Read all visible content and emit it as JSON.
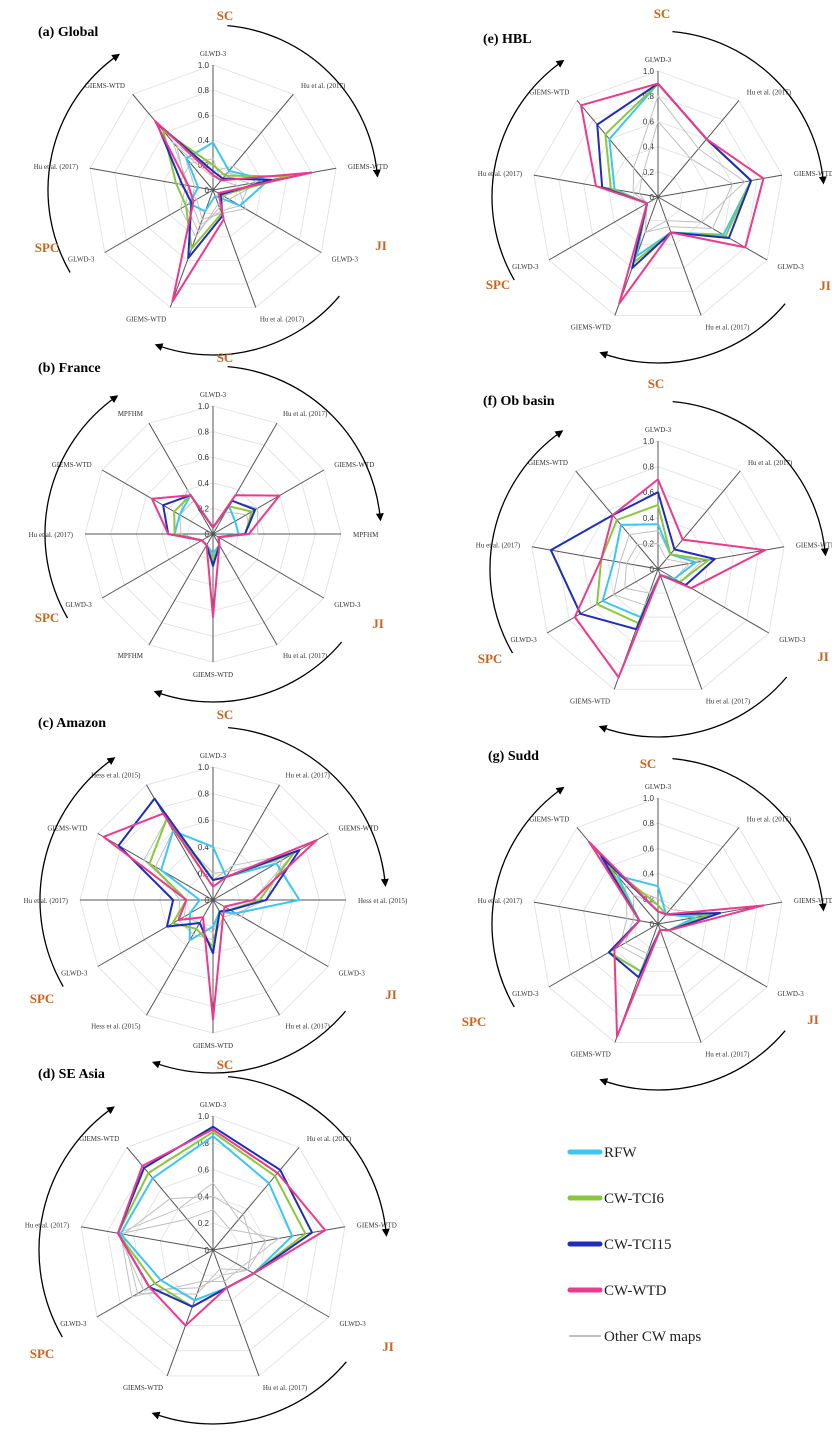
{
  "colors": {
    "RFW": "#3ec6f0",
    "CW-TCI6": "#8cc63f",
    "CW-TCI15": "#1f2fb5",
    "CW-WTD": "#ec3a8c",
    "Other CW maps": "#c0c0c0",
    "group_label": "#c8641e",
    "axis": "#555555",
    "grid": "#e2e2e2"
  },
  "legend": [
    "RFW",
    "CW-TCI6",
    "CW-TCI15",
    "CW-WTD",
    "Other CW maps"
  ],
  "chart_data": [
    {
      "type": "radar",
      "title": "(a) Global",
      "rticks": [
        "0",
        "0.2",
        "0.4",
        "0.6",
        "0.8",
        "1.0"
      ],
      "groups": [
        "SC",
        "JI",
        "SPC"
      ],
      "axes": [
        "GLWD-3",
        "Hu et al. (2017)",
        "GIEMS-WTD",
        "GLWD-3",
        "Hu et al. (2017)",
        "GIEMS-WTD",
        "GLWD-3",
        "Hu et al. (2017)",
        "GIEMS-WTD"
      ],
      "series": [
        {
          "name": "RFW",
          "values": [
            0.38,
            0.2,
            0.45,
            0.25,
            0.05,
            0.18,
            0.22,
            0.12,
            0.33
          ]
        },
        {
          "name": "CW-TCI6",
          "values": [
            0.2,
            0.15,
            0.62,
            0.08,
            0.2,
            0.5,
            0.25,
            0.3,
            0.62
          ]
        },
        {
          "name": "CW-TCI15",
          "values": [
            0.15,
            0.12,
            0.47,
            0.07,
            0.22,
            0.58,
            0.2,
            0.25,
            0.7
          ]
        },
        {
          "name": "CW-WTD",
          "values": [
            0.12,
            0.1,
            0.8,
            0.05,
            0.25,
            0.95,
            0.18,
            0.2,
            0.72
          ]
        },
        {
          "name": "Other CW maps",
          "values": [
            [
              0.2,
              0.15,
              0.3,
              0.25,
              0.18,
              0.3,
              0.2,
              0.15,
              0.35
            ],
            [
              0.1,
              0.18,
              0.4,
              0.15,
              0.12,
              0.4,
              0.3,
              0.22,
              0.45
            ],
            [
              0.25,
              0.1,
              0.2,
              0.3,
              0.2,
              0.25,
              0.15,
              0.28,
              0.28
            ],
            [
              0.15,
              0.25,
              0.35,
              0.1,
              0.15,
              0.35,
              0.25,
              0.2,
              0.5
            ]
          ]
        }
      ]
    },
    {
      "type": "radar",
      "title": "(b) France",
      "rticks": [
        "0",
        "0.2",
        "0.4",
        "0.6",
        "0.8",
        "1.0"
      ],
      "groups": [
        "SC",
        "JI",
        "SPC"
      ],
      "axes": [
        "GLWD-3",
        "Hu et al. (2017)",
        "GIEMS-WTD",
        "MPFHM",
        "GLWD-3",
        "Hu et al. (2017)",
        "GIEMS-WTD",
        "MPFHM",
        "GLWD-3",
        "Hu et al. (2017)",
        "GIEMS-WTD",
        "MPFHM"
      ],
      "series": [
        {
          "name": "RFW",
          "values": [
            0.05,
            0.25,
            0.2,
            0.2,
            0.05,
            0.1,
            0.15,
            0.1,
            0.1,
            0.3,
            0.3,
            0.35
          ]
        },
        {
          "name": "CW-TCI6",
          "values": [
            0.05,
            0.25,
            0.35,
            0.25,
            0.05,
            0.1,
            0.2,
            0.1,
            0.1,
            0.3,
            0.35,
            0.35
          ]
        },
        {
          "name": "CW-TCI15",
          "values": [
            0.05,
            0.3,
            0.38,
            0.25,
            0.05,
            0.1,
            0.25,
            0.1,
            0.1,
            0.35,
            0.45,
            0.35
          ]
        },
        {
          "name": "CW-WTD",
          "values": [
            0.05,
            0.35,
            0.6,
            0.28,
            0.05,
            0.1,
            0.65,
            0.1,
            0.1,
            0.35,
            0.55,
            0.35
          ]
        },
        {
          "name": "Other CW maps",
          "values": [
            [
              0.05,
              0.3,
              0.4,
              0.35,
              0.05,
              0.1,
              0.2,
              0.1,
              0.1,
              0.3,
              0.3,
              0.4
            ],
            [
              0.05,
              0.2,
              0.3,
              0.3,
              0.05,
              0.1,
              0.18,
              0.1,
              0.1,
              0.25,
              0.3,
              0.3
            ]
          ]
        }
      ]
    },
    {
      "type": "radar",
      "title": "(c) Amazon",
      "rticks": [
        "0",
        "0.2",
        "0.4",
        "0.6",
        "0.8",
        "1.0"
      ],
      "groups": [
        "SC",
        "JI",
        "SPC"
      ],
      "axes": [
        "GLWD-3",
        "Hu et al. (2017)",
        "GIEMS-WTD",
        "Hess et al. (2015)",
        "GLWD-3",
        "Hu et al. (2017)",
        "GIEMS-WTD",
        "Hess et al. (2015)",
        "GLWD-3",
        "Hu et al. (2017)",
        "GIEMS-WTD",
        "Hess et al. (2015)"
      ],
      "series": [
        {
          "name": "RFW",
          "values": [
            0.4,
            0.2,
            0.55,
            0.65,
            0.2,
            0.1,
            0.2,
            0.35,
            0.2,
            0.1,
            0.45,
            0.6
          ]
        },
        {
          "name": "CW-TCI6",
          "values": [
            0.15,
            0.2,
            0.7,
            0.35,
            0.15,
            0.1,
            0.35,
            0.25,
            0.35,
            0.2,
            0.55,
            0.7
          ]
        },
        {
          "name": "CW-TCI15",
          "values": [
            0.15,
            0.2,
            0.75,
            0.4,
            0.15,
            0.1,
            0.4,
            0.2,
            0.4,
            0.3,
            0.82,
            0.88
          ]
        },
        {
          "name": "CW-WTD",
          "values": [
            0.1,
            0.2,
            0.9,
            0.3,
            0.1,
            0.15,
            0.9,
            0.15,
            0.3,
            0.2,
            0.95,
            0.75
          ]
        },
        {
          "name": "Other CW maps",
          "values": [
            [
              0.2,
              0.25,
              0.6,
              0.4,
              0.2,
              0.15,
              0.3,
              0.3,
              0.3,
              0.25,
              0.5,
              0.6
            ],
            [
              0.15,
              0.3,
              0.7,
              0.3,
              0.25,
              0.1,
              0.25,
              0.2,
              0.25,
              0.2,
              0.6,
              0.7
            ]
          ]
        }
      ]
    },
    {
      "type": "radar",
      "title": "(d) SE Asia",
      "rticks": [
        "0",
        "0.2",
        "0.4",
        "0.6",
        "0.8",
        "1.0"
      ],
      "groups": [
        "SC",
        "JI",
        "SPC"
      ],
      "axes": [
        "GLWD-3",
        "Hu et al. (2017)",
        "GIEMS-WTD",
        "GLWD-3",
        "Hu et al. (2017)",
        "GIEMS-WTD",
        "GLWD-3",
        "Hu et al. (2017)",
        "GIEMS-WTD"
      ],
      "series": [
        {
          "name": "RFW",
          "values": [
            0.85,
            0.65,
            0.6,
            0.35,
            0.3,
            0.4,
            0.45,
            0.7,
            0.7
          ]
        },
        {
          "name": "CW-TCI6",
          "values": [
            0.88,
            0.72,
            0.7,
            0.35,
            0.3,
            0.45,
            0.5,
            0.72,
            0.75
          ]
        },
        {
          "name": "CW-TCI15",
          "values": [
            0.92,
            0.78,
            0.75,
            0.35,
            0.3,
            0.45,
            0.55,
            0.72,
            0.8
          ]
        },
        {
          "name": "CW-WTD",
          "values": [
            0.9,
            0.75,
            0.85,
            0.35,
            0.3,
            0.6,
            0.55,
            0.72,
            0.82
          ]
        },
        {
          "name": "Other CW maps",
          "values": [
            [
              0.5,
              0.3,
              0.4,
              0.3,
              0.2,
              0.3,
              0.6,
              0.72,
              0.4
            ],
            [
              0.3,
              0.2,
              0.5,
              0.25,
              0.25,
              0.25,
              0.7,
              0.7,
              0.3
            ],
            [
              0.4,
              0.35,
              0.3,
              0.3,
              0.15,
              0.35,
              0.65,
              0.68,
              0.5
            ]
          ]
        }
      ]
    },
    {
      "type": "radar",
      "title": "(e) HBL",
      "rticks": [
        "0",
        "0.2",
        "0.4",
        "0.6",
        "0.8",
        "1.0"
      ],
      "groups": [
        "SC",
        "JI",
        "SPC"
      ],
      "axes": [
        "GLWD-3",
        "Hu et al. (2017)",
        "GIEMS-WTD",
        "GLWD-3",
        "Hu et al. (2017)",
        "GIEMS-WTD",
        "GLWD-3",
        "Hu et al. (2017)",
        "GIEMS-WTD"
      ],
      "series": [
        {
          "name": "RFW",
          "values": [
            0.9,
            0.6,
            0.75,
            0.6,
            0.3,
            0.5,
            0.1,
            0.35,
            0.6
          ]
        },
        {
          "name": "CW-TCI6",
          "values": [
            0.9,
            0.6,
            0.75,
            0.62,
            0.3,
            0.55,
            0.1,
            0.38,
            0.65
          ]
        },
        {
          "name": "CW-TCI15",
          "values": [
            0.9,
            0.6,
            0.75,
            0.65,
            0.3,
            0.6,
            0.1,
            0.45,
            0.75
          ]
        },
        {
          "name": "CW-WTD",
          "values": [
            0.9,
            0.6,
            0.85,
            0.8,
            0.3,
            0.9,
            0.1,
            0.5,
            0.95
          ]
        },
        {
          "name": "Other CW maps",
          "values": [
            [
              0.8,
              0.5,
              0.7,
              0.4,
              0.2,
              0.3,
              0.1,
              0.2,
              0.3
            ],
            [
              0.6,
              0.4,
              0.6,
              0.5,
              0.25,
              0.3,
              0.1,
              0.15,
              0.2
            ]
          ]
        }
      ]
    },
    {
      "type": "radar",
      "title": "(f) Ob basin",
      "rticks": [
        "0",
        "0.2",
        "0.4",
        "0.6",
        "0.8",
        "1.0"
      ],
      "groups": [
        "SC",
        "JI",
        "SPC"
      ],
      "axes": [
        "GLWD-3",
        "Hu et al. (2017)",
        "GIEMS-WTD",
        "GLWD-3",
        "Hu et al. (2017)",
        "GIEMS-WTD",
        "GLWD-3",
        "Hu et al. (2017)",
        "GIEMS-WTD"
      ],
      "series": [
        {
          "name": "RFW",
          "values": [
            0.35,
            0.15,
            0.3,
            0.15,
            0.05,
            0.4,
            0.5,
            0.35,
            0.45
          ]
        },
        {
          "name": "CW-TCI6",
          "values": [
            0.5,
            0.15,
            0.4,
            0.2,
            0.05,
            0.45,
            0.55,
            0.45,
            0.5
          ]
        },
        {
          "name": "CW-TCI15",
          "values": [
            0.6,
            0.2,
            0.45,
            0.25,
            0.05,
            0.5,
            0.7,
            0.85,
            0.55
          ]
        },
        {
          "name": "CW-WTD",
          "values": [
            0.7,
            0.3,
            0.85,
            0.3,
            0.05,
            0.9,
            0.75,
            0.45,
            0.55
          ]
        },
        {
          "name": "Other CW maps",
          "values": [
            [
              0.3,
              0.15,
              0.35,
              0.2,
              0.05,
              0.3,
              0.4,
              0.3,
              0.35
            ],
            [
              0.2,
              0.1,
              0.25,
              0.15,
              0.05,
              0.2,
              0.3,
              0.25,
              0.25
            ]
          ]
        }
      ]
    },
    {
      "type": "radar",
      "title": "(g) Sudd",
      "rticks": [
        "0",
        "0.2",
        "0.4",
        "0.6",
        "0.8",
        "1.0"
      ],
      "groups": [
        "SC",
        "JI",
        "SPC"
      ],
      "axes": [
        "GLWD-3",
        "Hu et al. (2017)",
        "GIEMS-WTD",
        "GLWD-3",
        "Hu et al. (2017)",
        "GIEMS-WTD",
        "GLWD-3",
        "Hu et al. (2017)",
        "GIEMS-WTD"
      ],
      "series": [
        {
          "name": "RFW",
          "values": [
            0.3,
            0.1,
            0.3,
            0.1,
            0.05,
            0.4,
            0.45,
            0.15,
            0.5
          ]
        },
        {
          "name": "CW-TCI6",
          "values": [
            0.15,
            0.1,
            0.4,
            0.1,
            0.05,
            0.4,
            0.45,
            0.15,
            0.6
          ]
        },
        {
          "name": "CW-TCI15",
          "values": [
            0.1,
            0.1,
            0.5,
            0.1,
            0.05,
            0.45,
            0.45,
            0.15,
            0.7
          ]
        },
        {
          "name": "CW-WTD",
          "values": [
            0.1,
            0.1,
            0.85,
            0.1,
            0.05,
            0.95,
            0.4,
            0.15,
            0.85
          ]
        },
        {
          "name": "Other CW maps",
          "values": [
            [
              0.2,
              0.15,
              0.45,
              0.1,
              0.05,
              0.3,
              0.35,
              0.25,
              0.4
            ],
            [
              0.15,
              0.1,
              0.3,
              0.1,
              0.05,
              0.25,
              0.3,
              0.2,
              0.3
            ]
          ]
        }
      ]
    }
  ]
}
